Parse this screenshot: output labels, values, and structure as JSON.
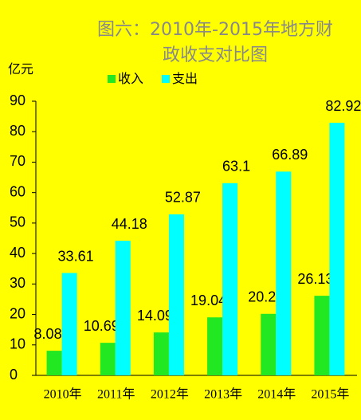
{
  "chart_data": {
    "type": "bar",
    "title": [
      "图六：2010年-2015年地方财",
      "政收支对比图"
    ],
    "y_label": "亿元",
    "categories": [
      "2010年",
      "2011年",
      "2012年",
      "2013年",
      "2014年",
      "2015年"
    ],
    "series": [
      {
        "name": "收入",
        "color": "#22e822",
        "values": [
          8.08,
          10.69,
          14.09,
          19.04,
          20.2,
          26.13
        ]
      },
      {
        "name": "支出",
        "color": "#00ffff",
        "values": [
          33.61,
          44.18,
          52.87,
          63.1,
          66.89,
          82.92
        ]
      }
    ],
    "ylim": [
      0,
      90
    ],
    "yticks": [
      0,
      10,
      20,
      30,
      40,
      50,
      60,
      70,
      80,
      90
    ],
    "grid": false
  }
}
